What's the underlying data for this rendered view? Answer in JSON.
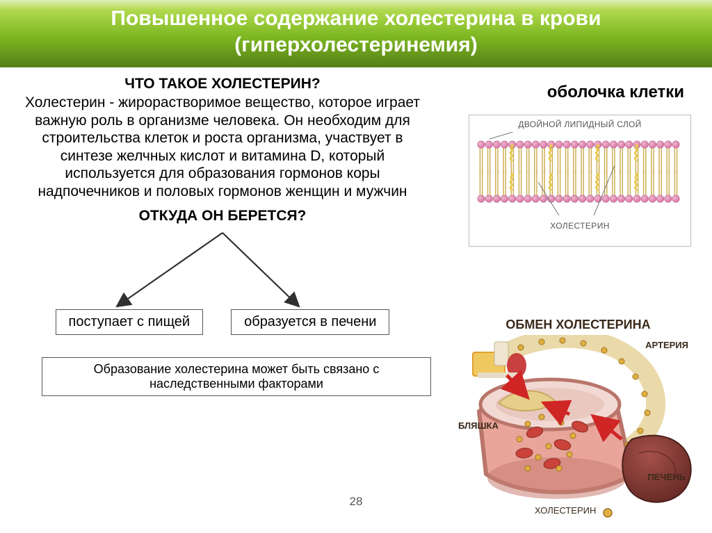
{
  "title_line1": "Повышенное содержание холестерина в крови",
  "title_line2": "(гиперхолестеринемия)",
  "q1": "ЧТО ТАКОЕ ХОЛЕСТЕРИН?",
  "para": "Холестерин - жирорастворимое вещество, которое играет важную роль в организме человека.  Он необходим для строительства клеток и роста организма, участвует в синтезе желчных кислот и витамина D, который используется для образования гормонов коры надпочечников и половых гормонов женщин и мужчин",
  "q2": "ОТКУДА ОН БЕРЕТСЯ?",
  "source1": "поступает с пищей",
  "source2": "образуется в печени",
  "footnote": "Образование холестерина может быть связано с наследственными факторами",
  "page_num": "28",
  "right_heading": "оболочка клетки",
  "membrane": {
    "top_label": "ДВОЙНОЙ ЛИПИДНЫЙ СЛОЙ",
    "bottom_label": "ХОЛЕСТЕРИН",
    "head_color": "#d97aa8",
    "head_highlight": "#f0b5cf",
    "tail_color": "#c9a94a",
    "chol_color": "#e6c84a",
    "pointer_color": "#777"
  },
  "metabolism": {
    "title": "ОБМЕН ХОЛЕСТЕРИНА",
    "labels": {
      "artery": "АРТЕРИЯ",
      "plaque": "БЛЯШКА",
      "liver": "ПЕЧЕНЬ",
      "chol": "ХОЛЕСТЕРИН"
    },
    "colors": {
      "artery_outer": "#b9756a",
      "artery_inner": "#e9a59a",
      "artery_lumen": "#f2d9d3",
      "plaque": "#e6cf8a",
      "blood_cell": "#c9433a",
      "liver": "#8a3b35",
      "liver_dark": "#6a2c27",
      "food1": "#e0a030",
      "food2": "#f0e6d0",
      "food3": "#c94040",
      "arrow": "#d02525",
      "dots": "#e0b040",
      "dot_ring": "#a07020",
      "swirl": "#e6d29a"
    }
  },
  "colors": {
    "banner_grad_top": "#b1d94e",
    "banner_grad_bottom": "#567f18",
    "text": "#000000",
    "box_border": "#555555",
    "arrow_stroke": "#303030"
  }
}
